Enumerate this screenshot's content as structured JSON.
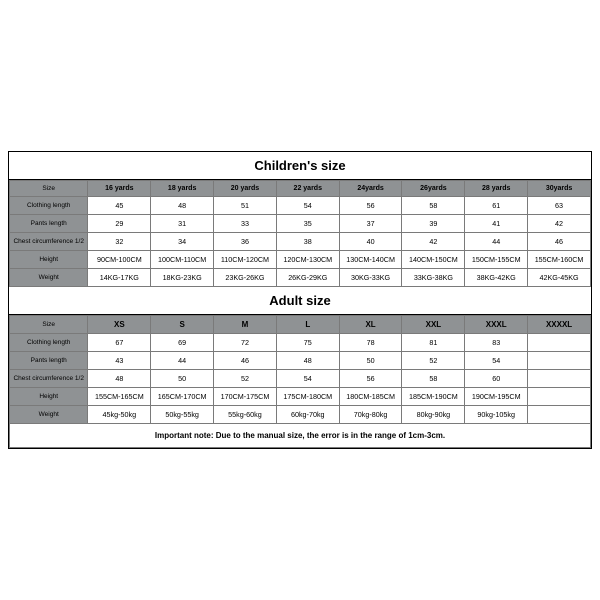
{
  "children": {
    "title": "Children's size",
    "row_labels": [
      "Size",
      "Clothing length",
      "Pants length",
      "Chest circumference 1/2",
      "Height",
      "Weight"
    ],
    "sizes": [
      "16 yards",
      "18 yards",
      "20 yards",
      "22 yards",
      "24yards",
      "26yards",
      "28 yards",
      "30yards"
    ],
    "clothing_length": [
      "45",
      "48",
      "51",
      "54",
      "56",
      "58",
      "61",
      "63"
    ],
    "pants_length": [
      "29",
      "31",
      "33",
      "35",
      "37",
      "39",
      "41",
      "42"
    ],
    "chest": [
      "32",
      "34",
      "36",
      "38",
      "40",
      "42",
      "44",
      "46"
    ],
    "height": [
      "90CM-100CM",
      "100CM-110CM",
      "110CM-120CM",
      "120CM-130CM",
      "130CM-140CM",
      "140CM-150CM",
      "150CM-155CM",
      "155CM-160CM"
    ],
    "weight": [
      "14KG-17KG",
      "18KG-23KG",
      "23KG-26KG",
      "26KG-29KG",
      "30KG-33KG",
      "33KG-38KG",
      "38KG-42KG",
      "42KG-45KG"
    ]
  },
  "adult": {
    "title": "Adult size",
    "row_labels": [
      "Size",
      "Clothing length",
      "Pants length",
      "Chest circumference 1/2",
      "Height",
      "Weight"
    ],
    "sizes": [
      "XS",
      "S",
      "M",
      "L",
      "XL",
      "XXL",
      "XXXL",
      "XXXXL"
    ],
    "clothing_length": [
      "67",
      "69",
      "72",
      "75",
      "78",
      "81",
      "83",
      ""
    ],
    "pants_length": [
      "43",
      "44",
      "46",
      "48",
      "50",
      "52",
      "54",
      ""
    ],
    "chest": [
      "48",
      "50",
      "52",
      "54",
      "56",
      "58",
      "60",
      ""
    ],
    "height": [
      "155CM-165CM",
      "165CM-170CM",
      "170CM-175CM",
      "175CM-180CM",
      "180CM-185CM",
      "185CM-190CM",
      "190CM-195CM",
      ""
    ],
    "weight": [
      "45kg-50kg",
      "50kg-55kg",
      "55kg-60kg",
      "60kg-70kg",
      "70kg-80kg",
      "80kg-90kg",
      "90kg-105kg",
      ""
    ]
  },
  "note": "Important note: Due to the manual size, the error is in the range of 1cm-3cm.",
  "styling": {
    "header_bg": "#8f9294",
    "border_color": "#7a7a7a",
    "outer_border": "#000000",
    "text_color": "#000000",
    "font_family": "Arial",
    "title_fontsize_pt": 10,
    "cell_fontsize_pt": 5.5,
    "rowheader_fontsize_pt": 5,
    "note_fontsize_pt": 6
  }
}
